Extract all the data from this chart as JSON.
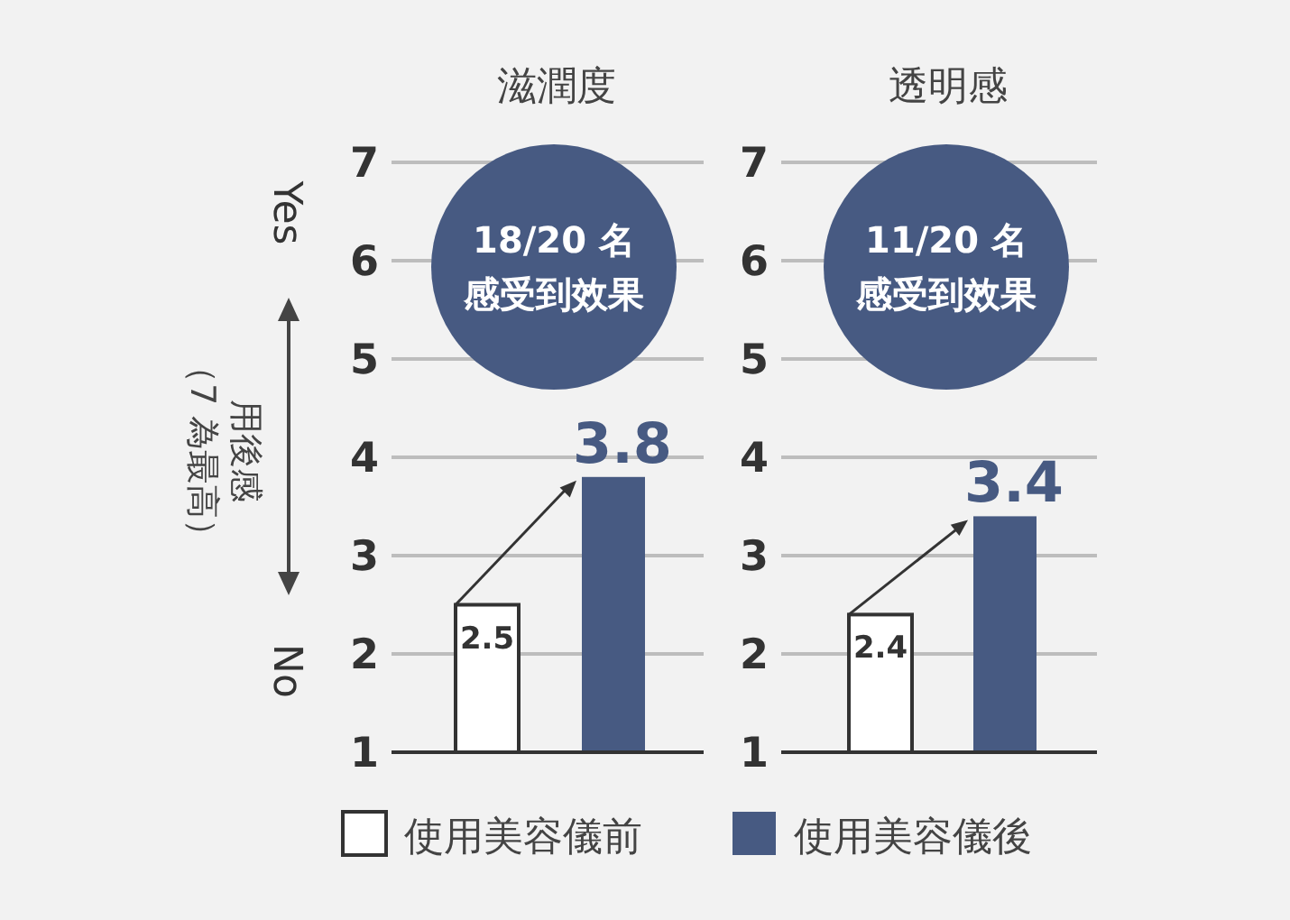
{
  "chart_data": [
    {
      "type": "bar",
      "title": "滋潤度",
      "ylabel": "用後感（7 為最高）",
      "categories": [
        null,
        null
      ],
      "series": [
        {
          "name": "使用美容儀前",
          "color": "#ffffff",
          "values": [
            2.5,
            null
          ]
        },
        {
          "name": "使用美容儀後",
          "color": "#475a82",
          "values": [
            null,
            3.8
          ]
        }
      ],
      "ylim": [
        1,
        7
      ],
      "yticks": [
        1,
        2,
        3,
        4,
        5,
        6,
        7
      ],
      "grid": "y",
      "data_labels": true,
      "legend": "bottom",
      "annotations": [
        "Yes",
        "No",
        "18/20 名",
        "感受到效果"
      ]
    },
    {
      "type": "bar",
      "title": "透明感",
      "categories": [
        null,
        null
      ],
      "series": [
        {
          "color": "#ffffff",
          "values": [
            2.4,
            null
          ]
        },
        {
          "color": "#475a82",
          "values": [
            null,
            3.4
          ]
        }
      ],
      "ylim": [
        1,
        7
      ],
      "yticks": [
        1,
        2,
        3,
        4,
        5,
        6,
        7
      ],
      "grid": "y",
      "data_labels": true,
      "annotations": [
        "11/20 名",
        "感受到效果"
      ]
    }
  ]
}
